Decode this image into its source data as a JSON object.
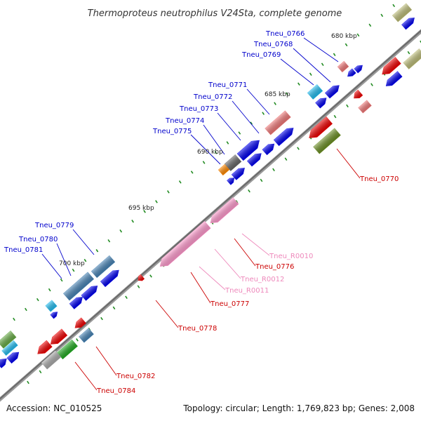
{
  "title": "Thermoproteus neutrophilus V24Sta, complete genome",
  "footer": {
    "accession": "Accession: NC_010525",
    "info": "Topology: circular; Length: 1,769,823 bp; Genes: 2,008"
  },
  "ticks": [
    {
      "label": "680 kbp"
    },
    {
      "label": "685 kbp"
    },
    {
      "label": "690 kbp"
    },
    {
      "label": "695 kbp"
    },
    {
      "label": "700 kbp"
    }
  ],
  "colors": {
    "backbone": "#808080",
    "blue": "#0000ee",
    "red": "#ee0000",
    "pink": "#ff99cc",
    "cyan": "#22bbee",
    "steel": "#4682b4",
    "salmon": "#ee7777",
    "olive": "#6b8e23",
    "gray": "#666666",
    "orange": "#ff8800",
    "green": "#22aa22",
    "khaki": "#bbbb77",
    "label_blue": "#0000cc",
    "label_red": "#cc0000",
    "label_pink": "#ee88bb"
  },
  "labels": {
    "Tneu_0766": "Tneu_0766",
    "Tneu_0768": "Tneu_0768",
    "Tneu_0769": "Tneu_0769",
    "Tneu_0771": "Tneu_0771",
    "Tneu_0772": "Tneu_0772",
    "Tneu_0773": "Tneu_0773",
    "Tneu_0774": "Tneu_0774",
    "Tneu_0775": "Tneu_0775",
    "Tneu_0779": "Tneu_0779",
    "Tneu_0780": "Tneu_0780",
    "Tneu_0781": "Tneu_0781",
    "Tneu_0770": "Tneu_0770",
    "Tneu_R0010": "Tneu_R0010",
    "Tneu_0776": "Tneu_0776",
    "Tneu_R0012": "Tneu_R0012",
    "Tneu_R0011": "Tneu_R0011",
    "Tneu_0777": "Tneu_0777",
    "Tneu_0778": "Tneu_0778",
    "Tneu_0782": "Tneu_0782",
    "Tneu_0784": "Tneu_0784"
  }
}
